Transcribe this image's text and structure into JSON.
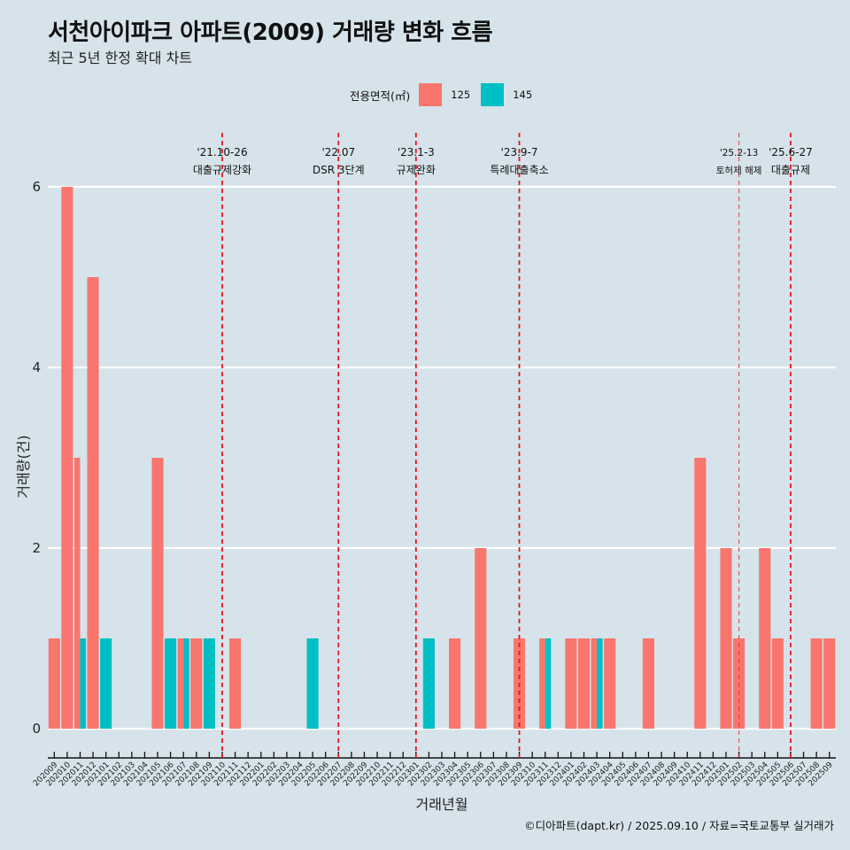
{
  "header": {
    "title": "서천아이파크 아파트(2009) 거래량 변화 흐름",
    "subtitle": "최근 5년 한정 확대 차트"
  },
  "legend": {
    "title": "전용면적(㎡)",
    "items": [
      {
        "label": "125",
        "color": "#F8766D"
      },
      {
        "label": "145",
        "color": "#00BFC4"
      }
    ]
  },
  "footer": "©디아파트(dapt.kr) / 2025.09.10 / 자료=국토교통부 실거래가",
  "chart_data": {
    "type": "bar",
    "title": "서천아이파크 아파트(2009) 거래량 변화 흐름",
    "subtitle": "최근 5년 한정 확대 차트",
    "xlabel": "거래년월",
    "ylabel": "거래량(건)",
    "ylim": [
      0,
      6
    ],
    "yticks": [
      0,
      2,
      4,
      6
    ],
    "grid": true,
    "legend_position": "top",
    "categories": [
      "202009",
      "202010",
      "202011",
      "202012",
      "202101",
      "202102",
      "202103",
      "202104",
      "202105",
      "202106",
      "202107",
      "202108",
      "202109",
      "202110",
      "202111",
      "202112",
      "202201",
      "202202",
      "202203",
      "202204",
      "202205",
      "202206",
      "202207",
      "202208",
      "202209",
      "202210",
      "202211",
      "202212",
      "202301",
      "202302",
      "202303",
      "202304",
      "202305",
      "202306",
      "202307",
      "202308",
      "202309",
      "202310",
      "202311",
      "202312",
      "202401",
      "202402",
      "202403",
      "202404",
      "202405",
      "202406",
      "202407",
      "202408",
      "202409",
      "202410",
      "202411",
      "202412",
      "202501",
      "202502",
      "202503",
      "202504",
      "202505",
      "202506",
      "202507",
      "202508",
      "202509"
    ],
    "series": [
      {
        "name": "125",
        "color": "#F8766D",
        "values": [
          1,
          6,
          3,
          5,
          0,
          0,
          0,
          0,
          3,
          0,
          1,
          1,
          0,
          0,
          1,
          0,
          0,
          0,
          0,
          0,
          0,
          0,
          0,
          0,
          0,
          0,
          0,
          0,
          0,
          0,
          0,
          1,
          0,
          2,
          0,
          0,
          1,
          0,
          1,
          0,
          1,
          1,
          1,
          1,
          0,
          0,
          1,
          0,
          0,
          0,
          3,
          0,
          2,
          1,
          0,
          2,
          1,
          0,
          0,
          1,
          1
        ]
      },
      {
        "name": "145",
        "color": "#00BFC4",
        "values": [
          0,
          0,
          1,
          0,
          1,
          0,
          0,
          0,
          0,
          1,
          1,
          0,
          1,
          0,
          0,
          0,
          0,
          0,
          0,
          0,
          1,
          0,
          0,
          0,
          0,
          0,
          0,
          0,
          0,
          1,
          0,
          0,
          0,
          0,
          0,
          0,
          0,
          0,
          1,
          0,
          0,
          0,
          1,
          0,
          0,
          0,
          0,
          0,
          0,
          0,
          0,
          0,
          0,
          0,
          0,
          0,
          0,
          0,
          0,
          0,
          0
        ]
      }
    ],
    "annotations": [
      {
        "month": "202110",
        "date": "'21.10-26",
        "label": "대출규제강화",
        "style": "bold"
      },
      {
        "month": "202207",
        "date": "'22.07",
        "label": "DSR 3단계",
        "style": "bold"
      },
      {
        "month": "202301",
        "date": "'23.1-3",
        "label": "규제완화",
        "style": "bold"
      },
      {
        "month": "202309",
        "date": "'23.9-7",
        "label": "특례대출축소",
        "style": "bold"
      },
      {
        "month": "202502",
        "date": "'25.2-13",
        "label": "토허제 해제",
        "style": "thin"
      },
      {
        "month": "202506",
        "date": "'25.6-27",
        "label": "대출규제",
        "style": "bold"
      }
    ]
  }
}
